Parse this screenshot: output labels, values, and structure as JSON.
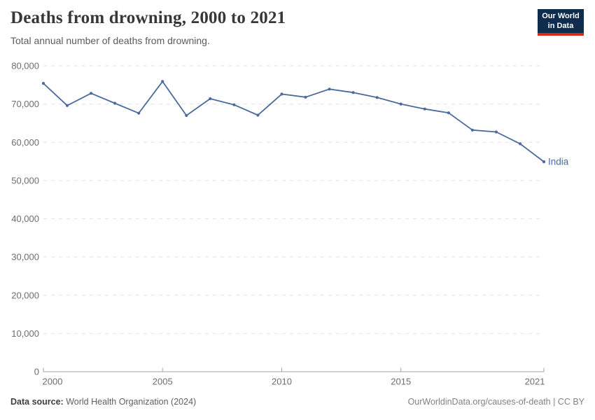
{
  "header": {
    "title": "Deaths from drowning, 2000 to 2021",
    "subtitle": "Total annual number of deaths from drowning.",
    "logo": {
      "line1": "Our World",
      "line2": "in Data",
      "bg": "#0e2c4e",
      "accent": "#d62a1c"
    }
  },
  "chart_data": {
    "type": "line",
    "title": "Deaths from drowning, 2000 to 2021",
    "subtitle": "Total annual number of deaths from drowning.",
    "xlabel": "",
    "ylabel": "",
    "xlim": [
      2000,
      2021
    ],
    "ylim": [
      0,
      80000
    ],
    "x_ticks": [
      2000,
      2005,
      2010,
      2015,
      2021
    ],
    "y_ticks": [
      0,
      10000,
      20000,
      30000,
      40000,
      50000,
      60000,
      70000,
      80000
    ],
    "grid": "horizontal-dashed",
    "legend_position": "label-at-line-end",
    "series": [
      {
        "name": "India",
        "color": "#4c6a9c",
        "x": [
          2000,
          2001,
          2002,
          2003,
          2004,
          2005,
          2006,
          2007,
          2008,
          2009,
          2010,
          2011,
          2012,
          2013,
          2014,
          2015,
          2016,
          2017,
          2018,
          2019,
          2020,
          2021
        ],
        "values": [
          75400,
          69600,
          72800,
          70200,
          67600,
          75900,
          67000,
          71400,
          69800,
          67100,
          72600,
          71800,
          73900,
          73000,
          71700,
          70000,
          68700,
          67700,
          63200,
          62700,
          59600,
          54900
        ]
      }
    ],
    "style": {
      "grid_color": "#e2e2e2",
      "axis_color": "#a3a3a3",
      "tick_label_color": "#6e6e6e"
    }
  },
  "footer": {
    "source_label": "Data source:",
    "source_value": "World Health Organization (2024)",
    "credit": "OurWorldinData.org/causes-of-death | CC BY"
  }
}
